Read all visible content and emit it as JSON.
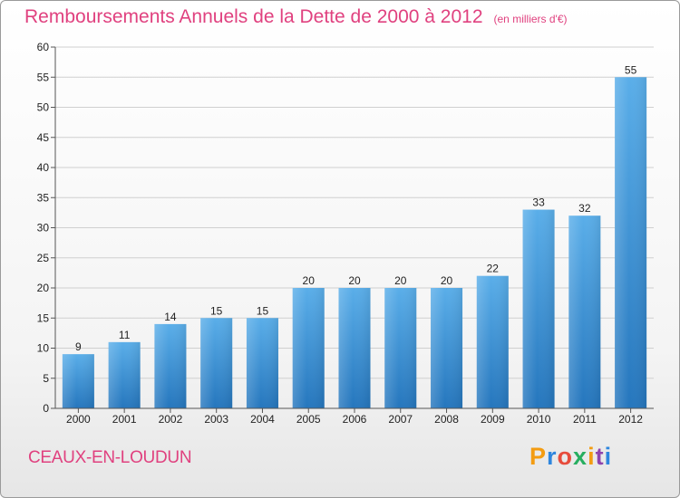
{
  "colors": {
    "accent": "#e0417f",
    "bar_top": "#5aaee9",
    "bar_bottom": "#2576bd",
    "grid": "#d0d0d0",
    "axis": "#555555"
  },
  "footer": {
    "commune": "CEAUX-EN-LOUDUN",
    "brand": "Proxiti",
    "brand_colors": [
      "#f39c12",
      "#2e86de",
      "#e74c3c",
      "#27ae60",
      "#f39c12",
      "#8e44ad",
      "#2e86de"
    ]
  },
  "chart_data": {
    "type": "bar",
    "title": "Remboursements Annuels de la Dette de 2000 à 2012",
    "subtitle": "(en milliers d'€)",
    "xlabel": "",
    "ylabel": "",
    "ylim": [
      0,
      60
    ],
    "yticks": [
      0,
      5,
      10,
      15,
      20,
      25,
      30,
      35,
      40,
      45,
      50,
      55,
      60
    ],
    "grid": true,
    "categories": [
      "2000",
      "2001",
      "2002",
      "2003",
      "2004",
      "2005",
      "2006",
      "2007",
      "2008",
      "2009",
      "2010",
      "2011",
      "2012"
    ],
    "values": [
      9,
      11,
      14,
      15,
      15,
      20,
      20,
      20,
      20,
      22,
      33,
      32,
      55
    ]
  }
}
